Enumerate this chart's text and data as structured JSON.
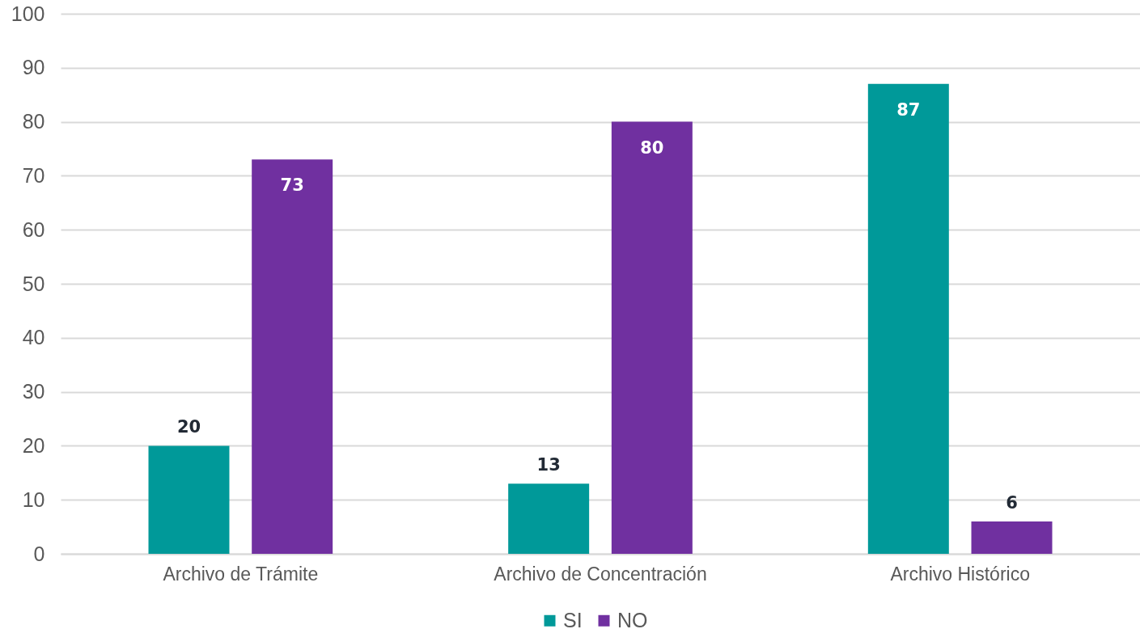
{
  "chart_data": {
    "type": "bar",
    "categories": [
      "Archivo de Trámite",
      "Archivo de Concentración",
      "Archivo Histórico"
    ],
    "series": [
      {
        "name": "SI",
        "color": "#009999",
        "values": [
          20,
          13,
          87
        ]
      },
      {
        "name": "NO",
        "color": "#7030a0",
        "values": [
          73,
          80,
          6
        ]
      }
    ],
    "ylim": [
      0,
      100
    ],
    "yticks": [
      0,
      10,
      20,
      30,
      40,
      50,
      60,
      70,
      80,
      90,
      100
    ],
    "grid": "y",
    "legend": "bottom",
    "data_labels": true
  }
}
